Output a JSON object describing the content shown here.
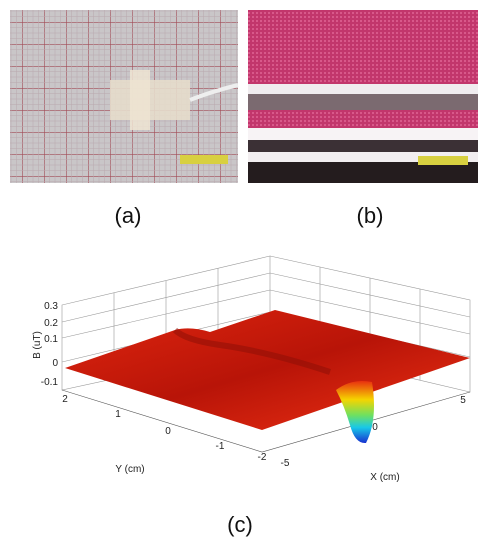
{
  "panels": {
    "a": {
      "label": "(a)"
    },
    "b": {
      "label": "(b)"
    },
    "c": {
      "label": "(c)",
      "z_axis_label": "B (uT)",
      "y_axis_label": "Y (cm)",
      "x_axis_label": "X (cm)",
      "z_ticks": [
        "0.3",
        "0.2",
        "0.1",
        "0",
        "-0.1"
      ],
      "y_ticks": [
        "2",
        "1",
        "0",
        "-1",
        "-2"
      ],
      "x_ticks": [
        "-5",
        "0",
        "5"
      ]
    }
  }
}
